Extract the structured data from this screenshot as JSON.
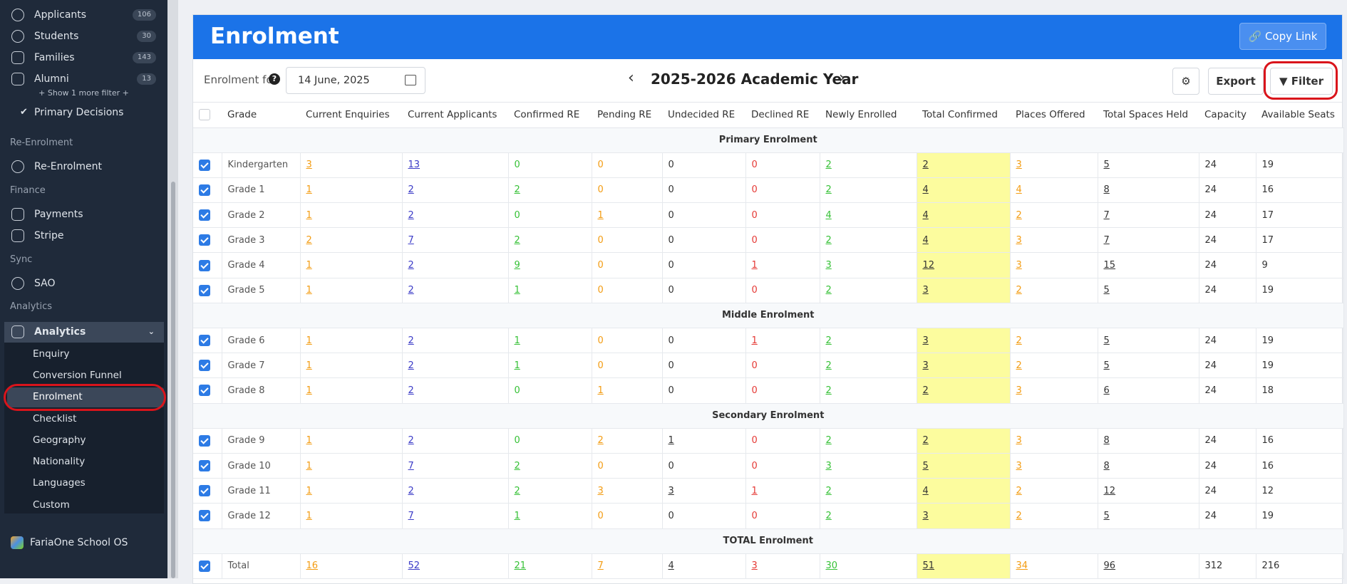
{
  "sidebar": {
    "filters": [
      {
        "label": "Applicants",
        "count": 106
      },
      {
        "label": "Students",
        "count": 30
      },
      {
        "label": "Families",
        "count": 143
      },
      {
        "label": "Alumni",
        "count": 13
      }
    ],
    "show_more": "+ Show 1 more filter +",
    "primary_decisions": "Primary Decisions",
    "re_enrolment": {
      "heading": "Re-Enrolment",
      "items": [
        "Re-Enrolment"
      ]
    },
    "finance": {
      "heading": "Finance",
      "items": [
        "Payments",
        "Stripe"
      ]
    },
    "sync": {
      "heading": "Sync",
      "items": [
        "SAO"
      ]
    },
    "analytics": {
      "heading": "Analytics",
      "items": [
        "Analytics"
      ],
      "submenu": [
        "Enquiry",
        "Conversion Funnel",
        "Enrolment",
        "Checklist",
        "Geography",
        "Nationality",
        "Languages",
        "Custom"
      ]
    },
    "footer": "FariaOne School OS"
  },
  "header": {
    "title": "Enrolment",
    "copy_link": "Copy Link"
  },
  "toolbar": {
    "label": "Enrolment for",
    "date": "14 June, 2025",
    "year": "2025-2026 Academic Year",
    "export": "Export",
    "filter": "Filter"
  },
  "table": {
    "columns": [
      "Grade",
      "Current Enquiries",
      "Current Applicants",
      "Confirmed RE",
      "Pending RE",
      "Undecided RE",
      "Declined RE",
      "Newly Enrolled",
      "Total Confirmed",
      "Places Offered",
      "Total Spaces Held",
      "Capacity",
      "Available Seats"
    ],
    "sections": [
      {
        "title": "Primary Enrolment",
        "rows": [
          [
            "Kindergarten",
            3,
            13,
            0,
            0,
            0,
            0,
            2,
            2,
            3,
            5,
            24,
            19
          ],
          [
            "Grade 1",
            1,
            2,
            2,
            0,
            0,
            0,
            2,
            4,
            4,
            8,
            24,
            16
          ],
          [
            "Grade 2",
            1,
            2,
            0,
            1,
            0,
            0,
            4,
            4,
            2,
            7,
            24,
            17
          ],
          [
            "Grade 3",
            2,
            7,
            2,
            0,
            0,
            0,
            2,
            4,
            3,
            7,
            24,
            17
          ],
          [
            "Grade 4",
            1,
            2,
            9,
            0,
            0,
            1,
            3,
            12,
            3,
            15,
            24,
            9
          ],
          [
            "Grade 5",
            1,
            2,
            1,
            0,
            0,
            0,
            2,
            3,
            2,
            5,
            24,
            19
          ]
        ]
      },
      {
        "title": "Middle Enrolment",
        "rows": [
          [
            "Grade 6",
            1,
            2,
            1,
            0,
            0,
            1,
            2,
            3,
            2,
            5,
            24,
            19
          ],
          [
            "Grade 7",
            1,
            2,
            1,
            0,
            0,
            0,
            2,
            3,
            2,
            5,
            24,
            19
          ],
          [
            "Grade 8",
            1,
            2,
            0,
            1,
            0,
            0,
            2,
            2,
            3,
            6,
            24,
            18
          ]
        ]
      },
      {
        "title": "Secondary Enrolment",
        "rows": [
          [
            "Grade 9",
            1,
            2,
            0,
            2,
            1,
            0,
            2,
            2,
            3,
            8,
            24,
            16
          ],
          [
            "Grade 10",
            1,
            7,
            2,
            0,
            0,
            0,
            3,
            5,
            3,
            8,
            24,
            16
          ],
          [
            "Grade 11",
            1,
            2,
            2,
            3,
            3,
            1,
            2,
            4,
            2,
            12,
            24,
            12
          ],
          [
            "Grade 12",
            1,
            7,
            1,
            0,
            0,
            0,
            2,
            3,
            2,
            5,
            24,
            19
          ]
        ]
      },
      {
        "title": "TOTAL Enrolment",
        "rows": [
          [
            "Total",
            16,
            52,
            21,
            7,
            4,
            3,
            30,
            51,
            34,
            96,
            312,
            216
          ]
        ]
      }
    ]
  }
}
